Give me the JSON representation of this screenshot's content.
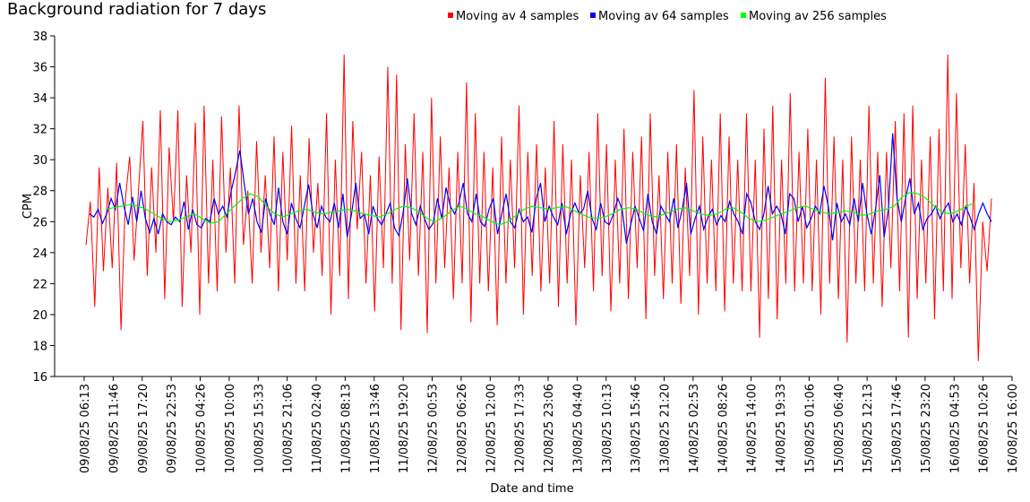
{
  "chart_data": {
    "type": "line",
    "title": "Background radiation for 7 days",
    "xlabel": "Date and time",
    "ylabel": "CPM",
    "ylim": [
      16,
      38
    ],
    "y_ticks": [
      16,
      18,
      20,
      22,
      24,
      26,
      28,
      30,
      32,
      34,
      36,
      38
    ],
    "x_tick_labels": [
      "09/08/25 06:13",
      "09/08/25 11:46",
      "09/08/25 17:20",
      "09/08/25 22:53",
      "10/08/25 04:26",
      "10/08/25 10:00",
      "10/08/25 15:33",
      "10/08/25 21:06",
      "11/08/25 02:40",
      "11/08/25 08:13",
      "11/08/25 13:46",
      "11/08/25 19:20",
      "12/08/25 00:53",
      "12/08/25 06:26",
      "12/08/25 12:00",
      "12/08/25 17:33",
      "12/08/25 23:06",
      "13/08/25 04:40",
      "13/08/25 10:13",
      "13/08/25 15:46",
      "13/08/25 21:20",
      "14/08/25 02:53",
      "14/08/25 08:26",
      "14/08/25 14:00",
      "14/08/25 19:33",
      "15/08/25 01:06",
      "15/08/25 06:40",
      "15/08/25 12:13",
      "15/08/25 17:46",
      "15/08/25 23:20",
      "16/08/25 04:53",
      "16/08/25 10:26",
      "16/08/25 16:00"
    ],
    "grid": false,
    "legend_position": "top-right",
    "series": [
      {
        "name": "Moving av 4 samples",
        "color": "#ff0000",
        "values": [
          24.5,
          27.3,
          20.5,
          29.5,
          22.8,
          28.2,
          23.0,
          29.8,
          19.0,
          27.5,
          30.2,
          23.5,
          28.0,
          32.5,
          22.5,
          29.5,
          24.0,
          33.2,
          21.0,
          30.8,
          26.0,
          33.2,
          20.5,
          29.0,
          24.0,
          32.4,
          20.0,
          33.5,
          22.0,
          30.0,
          21.5,
          32.8,
          24.0,
          29.5,
          22.0,
          33.5,
          24.5,
          28.0,
          22.0,
          31.2,
          24.0,
          29.0,
          23.0,
          31.5,
          21.5,
          30.5,
          23.5,
          32.2,
          22.0,
          29.0,
          21.5,
          31.4,
          24.0,
          28.5,
          22.5,
          33.0,
          20.0,
          30.0,
          22.5,
          36.8,
          21.0,
          32.5,
          25.5,
          30.5,
          22.0,
          29.0,
          20.2,
          30.2,
          23.0,
          36.0,
          22.0,
          35.5,
          19.0,
          31.0,
          23.5,
          33.0,
          22.5,
          30.5,
          18.8,
          34.0,
          22.0,
          31.5,
          23.0,
          29.5,
          21.0,
          30.5,
          22.0,
          35.0,
          19.5,
          33.0,
          22.0,
          30.5,
          21.5,
          29.5,
          19.3,
          31.5,
          22.0,
          30.0,
          23.0,
          33.5,
          20.0,
          30.5,
          22.5,
          31.0,
          21.5,
          29.5,
          22.0,
          32.5,
          20.5,
          31.0,
          22.0,
          30.0,
          19.3,
          29.0,
          23.0,
          30.5,
          21.5,
          33.0,
          22.5,
          31.0,
          20.2,
          30.0,
          22.0,
          32.0,
          21.0,
          30.5,
          23.0,
          31.5,
          19.7,
          33.0,
          22.5,
          29.0,
          21.0,
          30.5,
          22.0,
          31.0,
          20.7,
          29.5,
          22.5,
          34.5,
          20.0,
          31.5,
          22.0,
          30.0,
          21.5,
          33.0,
          20.2,
          31.5,
          22.0,
          30.0,
          21.5,
          33.0,
          21.5,
          30.0,
          18.5,
          32.0,
          21.0,
          33.5,
          19.7,
          30.0,
          22.0,
          34.3,
          21.5,
          30.5,
          22.0,
          32.0,
          21.5,
          30.0,
          20.0,
          35.3,
          22.0,
          31.5,
          21.0,
          30.0,
          18.2,
          31.5,
          22.0,
          30.0,
          21.5,
          33.5,
          22.0,
          30.5,
          20.5,
          30.5,
          23.0,
          32.5,
          21.5,
          33.0,
          18.5,
          33.5,
          21.0,
          30.0,
          22.0,
          31.5,
          19.7,
          32.0,
          21.5,
          36.8,
          21.0,
          34.3,
          23.0,
          31.0,
          22.0,
          28.5,
          17.0,
          26.0,
          22.8,
          27.5
        ]
      },
      {
        "name": "Moving av 64 samples",
        "color": "#0000ff",
        "values": [
          26.5,
          26.3,
          26.8,
          25.9,
          26.5,
          27.5,
          26.8,
          28.5,
          27.0,
          25.8,
          27.6,
          26.0,
          28.0,
          26.2,
          25.3,
          26.2,
          25.2,
          26.5,
          26.0,
          25.8,
          26.3,
          26.0,
          27.3,
          25.5,
          26.8,
          25.8,
          25.6,
          26.2,
          26.0,
          27.5,
          26.5,
          27.0,
          26.3,
          28.0,
          29.2,
          30.6,
          28.5,
          26.5,
          27.5,
          26.0,
          25.3,
          27.5,
          26.5,
          25.8,
          28.2,
          26.0,
          25.2,
          27.2,
          26.2,
          25.6,
          27.0,
          28.4,
          26.5,
          25.6,
          27.0,
          26.3,
          26.0,
          27.2,
          25.6,
          27.8,
          25.0,
          26.5,
          28.5,
          26.2,
          26.5,
          25.2,
          27.0,
          26.2,
          25.8,
          26.5,
          27.2,
          25.6,
          25.1,
          26.6,
          28.8,
          26.5,
          25.8,
          27.0,
          26.2,
          25.5,
          25.9,
          27.5,
          26.2,
          28.2,
          27.0,
          26.5,
          27.2,
          28.5,
          26.5,
          26.0,
          27.8,
          26.0,
          25.7,
          26.8,
          27.5,
          25.2,
          26.5,
          27.8,
          26.0,
          25.6,
          26.8,
          26.0,
          26.3,
          25.3,
          27.5,
          28.5,
          26.0,
          27.0,
          26.3,
          25.8,
          27.2,
          25.2,
          26.5,
          27.2,
          26.5,
          26.8,
          28.0,
          26.2,
          25.5,
          27.2,
          26.0,
          25.8,
          26.5,
          27.5,
          26.8,
          24.6,
          25.8,
          27.0,
          26.2,
          25.4,
          27.8,
          26.0,
          25.2,
          27.0,
          26.5,
          26.0,
          27.5,
          25.6,
          26.8,
          28.5,
          25.2,
          26.2,
          27.0,
          25.5,
          26.3,
          26.8,
          25.8,
          26.4,
          26.0,
          27.3,
          26.5,
          26.0,
          25.2,
          27.8,
          27.2,
          26.0,
          25.5,
          26.5,
          28.3,
          26.5,
          27.0,
          26.5,
          25.2,
          27.8,
          27.5,
          26.0,
          27.0,
          25.6,
          26.2,
          27.0,
          26.5,
          28.3,
          27.0,
          24.8,
          27.2,
          26.0,
          26.5,
          25.8,
          27.5,
          26.0,
          28.5,
          26.5,
          25.2,
          26.8,
          29.0,
          25.0,
          26.8,
          31.7,
          27.5,
          26.0,
          27.5,
          28.8,
          26.5,
          27.2,
          25.5,
          26.2,
          26.5,
          27.0,
          26.2,
          26.8,
          27.2,
          26.0,
          26.5,
          25.8,
          27.0,
          26.3,
          25.5,
          26.5,
          27.2,
          26.5,
          26.0
        ]
      },
      {
        "name": "Moving av 256 samples",
        "color": "#00ff00",
        "values": [
          26.8,
          26.9,
          27.0,
          27.1,
          27.0,
          26.8,
          26.5,
          26.2,
          26.0,
          26.1,
          26.3,
          26.5,
          26.2,
          25.9,
          26.0,
          26.5,
          27.0,
          27.5,
          27.8,
          27.6,
          27.0,
          26.5,
          26.3,
          26.5,
          26.7,
          26.8,
          26.6,
          26.5,
          26.6,
          26.7,
          26.8,
          26.7,
          26.5,
          26.4,
          26.3,
          26.5,
          26.8,
          27.0,
          26.9,
          26.6,
          26.2,
          26.0,
          26.3,
          26.7,
          27.0,
          26.8,
          26.5,
          26.3,
          26.0,
          25.8,
          26.0,
          26.4,
          26.8,
          27.0,
          26.9,
          26.8,
          26.9,
          27.0,
          26.8,
          26.5,
          26.3,
          26.2,
          26.3,
          26.5,
          26.8,
          26.9,
          26.8,
          26.5,
          26.3,
          26.4,
          26.6,
          26.8,
          26.9,
          26.7,
          26.5,
          26.4,
          26.5,
          26.8,
          26.9,
          26.6,
          26.2,
          26.0,
          26.1,
          26.3,
          26.5,
          26.7,
          26.9,
          27.0,
          26.8,
          26.6,
          26.5,
          26.6,
          26.7,
          26.6,
          26.4,
          26.5,
          26.7,
          26.8,
          27.0,
          27.6,
          27.9,
          27.8,
          27.5,
          27.0,
          26.6,
          26.5,
          26.7,
          27.0,
          27.2
        ]
      }
    ]
  }
}
